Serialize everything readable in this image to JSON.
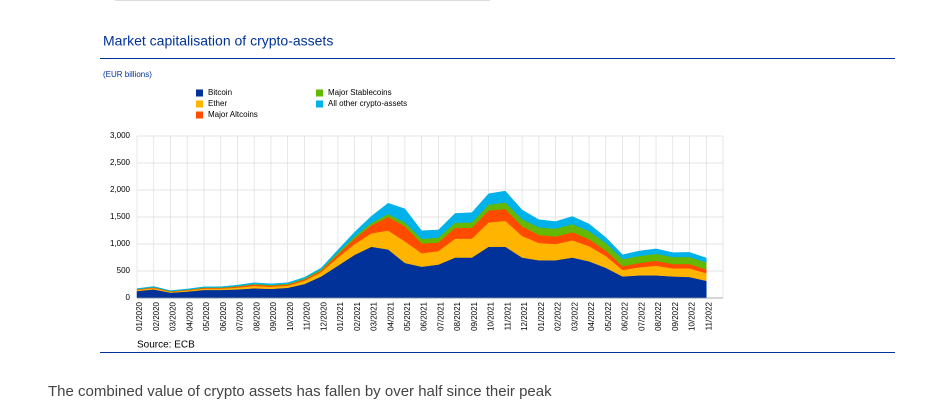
{
  "chart_data": {
    "type": "stacked_area",
    "title": "Market capitalisation of crypto-assets",
    "subtitle": "(EUR billions)",
    "source": "Source: ECB",
    "caption": "The combined value of crypto assets has fallen by over half since their peak",
    "categories": [
      "01/2020",
      "02/2020",
      "03/2020",
      "04/2020",
      "05/2020",
      "06/2020",
      "07/2020",
      "08/2020",
      "09/2020",
      "10/2020",
      "11/2020",
      "12/2020",
      "01/2021",
      "02/2021",
      "03/2021",
      "04/2021",
      "05/2021",
      "06/2021",
      "07/2021",
      "08/2021",
      "09/2021",
      "10/2021",
      "11/2021",
      "12/2021",
      "01/2022",
      "02/2022",
      "03/2022",
      "04/2022",
      "05/2022",
      "06/2022",
      "07/2022",
      "08/2022",
      "09/2022",
      "10/2022",
      "11/2022"
    ],
    "series": [
      {
        "name": "Bitcoin",
        "color": "#003299",
        "values": [
          130,
          160,
          100,
          120,
          150,
          150,
          160,
          180,
          170,
          190,
          260,
          400,
          600,
          800,
          950,
          900,
          650,
          580,
          620,
          750,
          750,
          950,
          950,
          750,
          700,
          700,
          750,
          680,
          560,
          400,
          420,
          420,
          400,
          390,
          320
        ]
      },
      {
        "name": "Ether",
        "color": "#ffb400",
        "values": [
          20,
          25,
          15,
          20,
          25,
          25,
          35,
          45,
          40,
          40,
          60,
          80,
          150,
          200,
          250,
          350,
          400,
          250,
          250,
          350,
          350,
          450,
          480,
          400,
          320,
          300,
          320,
          280,
          220,
          120,
          150,
          180,
          150,
          160,
          140
        ]
      },
      {
        "name": "Major Altcoins",
        "color": "#ff4b00",
        "values": [
          10,
          12,
          8,
          10,
          12,
          12,
          18,
          25,
          20,
          20,
          25,
          30,
          60,
          100,
          150,
          250,
          280,
          180,
          160,
          200,
          200,
          220,
          220,
          180,
          150,
          140,
          150,
          130,
          100,
          70,
          80,
          90,
          80,
          80,
          70
        ]
      },
      {
        "name": "Major Stablecoins",
        "color": "#65b800",
        "values": [
          4,
          4,
          5,
          6,
          8,
          9,
          10,
          12,
          14,
          15,
          17,
          20,
          30,
          40,
          45,
          55,
          70,
          85,
          90,
          95,
          100,
          110,
          120,
          130,
          140,
          145,
          150,
          150,
          140,
          130,
          130,
          130,
          130,
          130,
          130
        ]
      },
      {
        "name": "All other crypto-assets",
        "color": "#00b1ea",
        "values": [
          10,
          12,
          8,
          10,
          12,
          12,
          15,
          20,
          18,
          18,
          20,
          25,
          50,
          80,
          120,
          200,
          250,
          150,
          140,
          170,
          180,
          200,
          210,
          170,
          140,
          130,
          140,
          130,
          100,
          80,
          90,
          90,
          80,
          85,
          80
        ]
      }
    ],
    "ylim": [
      0,
      3000
    ],
    "yticks": [
      0,
      500,
      {
        "value": 1000,
        "label": "1,000"
      },
      {
        "value": 1500,
        "label": "1,500"
      },
      {
        "value": 2000,
        "label": "2,000"
      },
      {
        "value": 2500,
        "label": "2,500"
      },
      {
        "value": 3000,
        "label": "3,000"
      }
    ],
    "grid": true
  }
}
